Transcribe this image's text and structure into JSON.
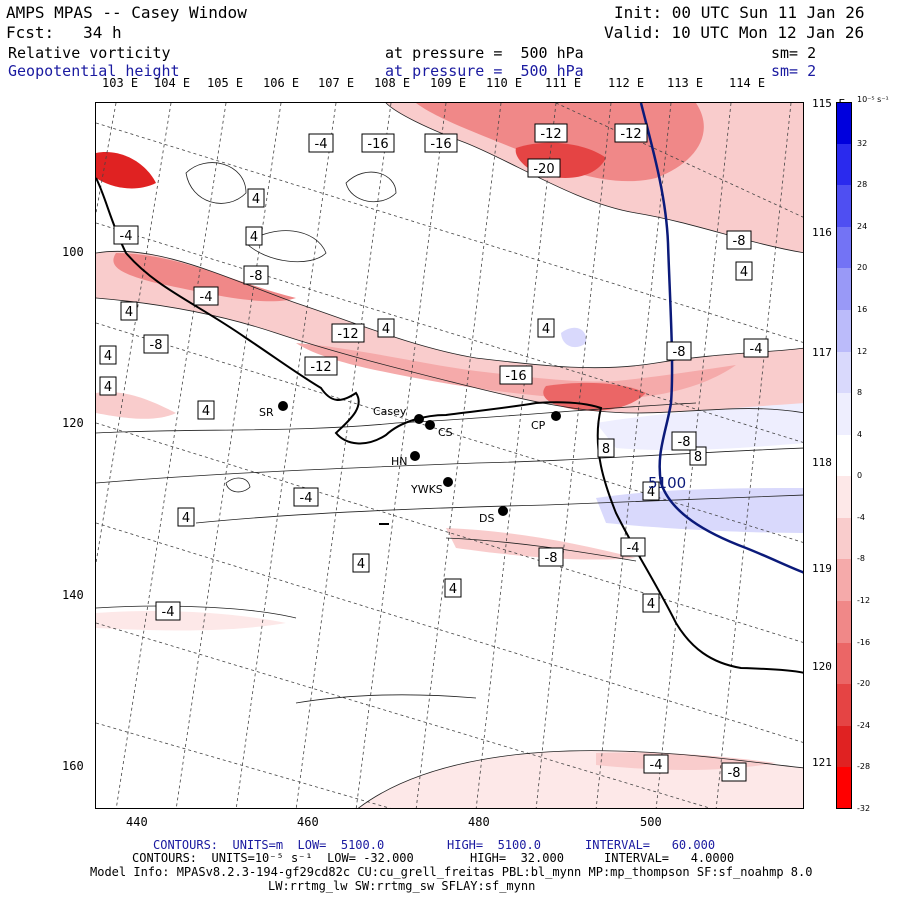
{
  "header": {
    "title": "AMPS MPAS -- Casey Window",
    "init": "Init: 00 UTC Sun 11 Jan 26",
    "forecast": "Fcst:   34 h",
    "valid": "Valid: 10 UTC Mon 12 Jan 26",
    "field1": "Relative vorticity",
    "field1_level": "at pressure =  500 hPa",
    "field1_sm": "sm= 2",
    "field2": "Geopotential height",
    "field2_level": "at pressure =  500 hPa",
    "field2_sm": "sm= 2"
  },
  "lon_labels": [
    "103 E",
    "104 E",
    "105 E",
    "106 E",
    "107 E",
    "108 E",
    "109 E",
    "110 E",
    "111 E",
    "112 E",
    "113 E",
    "114 E"
  ],
  "lat_labels": [
    "115 E",
    "116 E",
    "117 E",
    "118 E",
    "119 E",
    "120 E",
    "121 E"
  ],
  "y_ticks": [
    "100",
    "120",
    "140",
    "160"
  ],
  "x_ticks": [
    "440",
    "460",
    "480",
    "500"
  ],
  "contour_labels": {
    "vort": [
      "-4",
      "-16",
      "-12",
      "-20",
      "4",
      "-12",
      "-4",
      "-16",
      "-8",
      "-4",
      "4",
      "-8",
      "-12",
      "-12",
      "-16",
      "4",
      "4",
      "4",
      "4",
      "-8",
      "8",
      "-4",
      "4",
      "8",
      "4",
      "-4",
      "4",
      "-8",
      "-4",
      "4",
      "-4",
      "4",
      "-4",
      "-8",
      "4",
      "-8",
      "-8",
      "4",
      "4"
    ],
    "geo": "5100"
  },
  "stations": [
    {
      "name": "Casey"
    },
    {
      "name": "CS"
    },
    {
      "name": "SR"
    },
    {
      "name": "HN"
    },
    {
      "name": "YWKS"
    },
    {
      "name": "DS"
    },
    {
      "name": "CP"
    }
  ],
  "colorbar": {
    "unit": "10⁻⁵ s⁻¹",
    "labels": [
      "32",
      "28",
      "24",
      "20",
      "16",
      "12",
      "8",
      "4",
      "0",
      "-4",
      "-8",
      "-12",
      "-16",
      "-20",
      "-24",
      "-28",
      "-32"
    ],
    "colors": [
      "#0000dd",
      "#2a2aee",
      "#4f4ff2",
      "#7373f5",
      "#9999f7",
      "#bbbbfa",
      "#d9d9fc",
      "#eeeefe",
      "#ffffff",
      "#fde8e8",
      "#f9cccc",
      "#f5aaaa",
      "#f08888",
      "#eb6666",
      "#e54444",
      "#e02222",
      "#ff0000"
    ]
  },
  "footer": {
    "line1_a": "CONTOURS:  UNITS=m  LOW=  5100.0",
    "line1_b": "HIGH=  5100.0",
    "line1_c": "INTERVAL=   60.000",
    "line2_a": "CONTOURS:  UNITS=10⁻⁵ s⁻¹  LOW= -32.000",
    "line2_b": "HIGH=  32.000",
    "line2_c": "INTERVAL=   4.0000",
    "model1": "Model Info: MPASv8.2.3-194-gf29cd82c CU:cu_grell_freitas PBL:bl_mynn MP:mp_thompson SF:sf_noahmp 8.0",
    "model2": "LW:rrtmg_lw SW:rrtmg_sw SFLAY:sf_mynn"
  }
}
